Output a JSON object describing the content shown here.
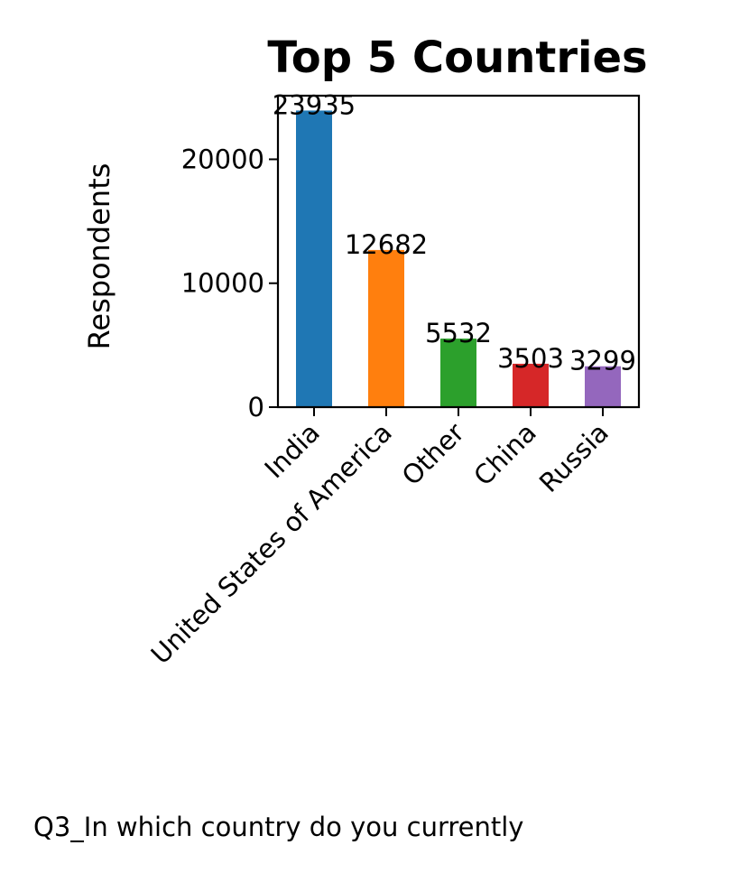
{
  "chart_data": {
    "type": "bar",
    "title": "Top 5 Countries",
    "xlabel": "Q3_In which country do you currently",
    "ylabel": "Respondents",
    "categories": [
      "India",
      "United States of America",
      "Other",
      "China",
      "Russia"
    ],
    "values": [
      23935,
      12682,
      5532,
      3503,
      3299
    ],
    "data_labels": [
      "23935",
      "12682",
      "5532",
      "3503",
      "3299"
    ],
    "colors": [
      "#1f77b4",
      "#ff7f0e",
      "#2ca02c",
      "#d62728",
      "#9467bd"
    ],
    "yticks": [
      0,
      10000,
      20000
    ],
    "ytick_labels": [
      "0",
      "10000",
      "20000"
    ],
    "ylim": [
      0,
      25132
    ],
    "grid": false,
    "legend": "none"
  }
}
